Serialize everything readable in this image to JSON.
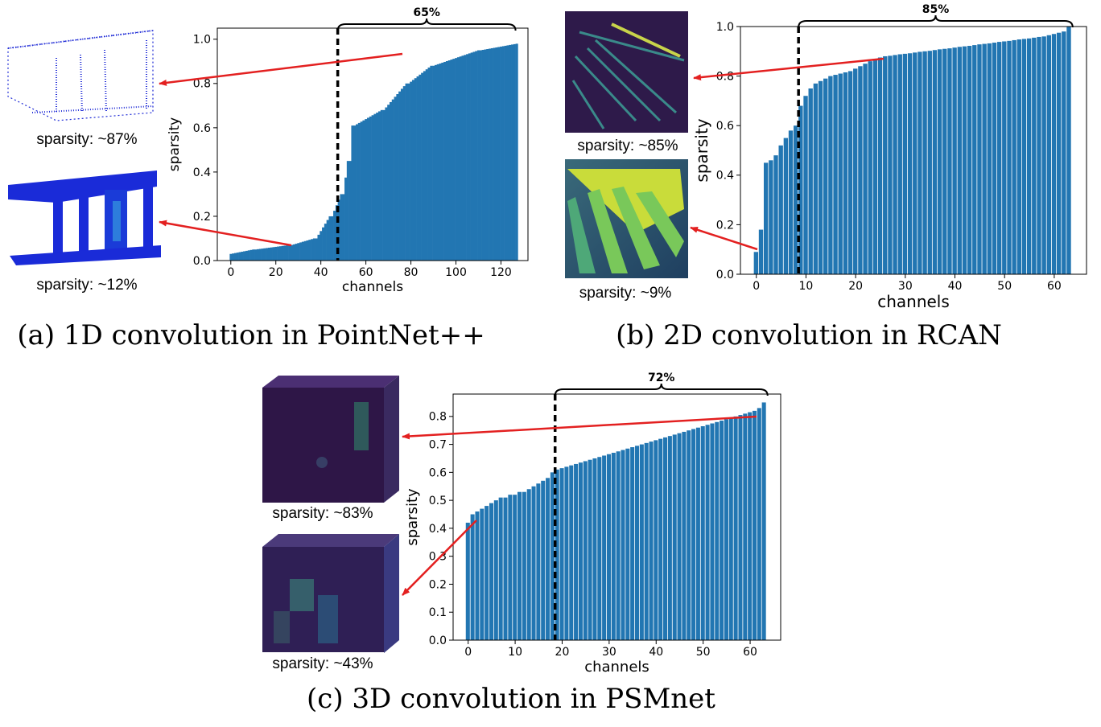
{
  "panels": [
    {
      "caption": "(a) 1D convolution in PointNet++",
      "thumb_labels": [
        "sparsity: ~87%",
        "sparsity: ~12%"
      ],
      "bracket_label": "65%"
    },
    {
      "caption": "(b) 2D convolution in RCAN",
      "thumb_labels": [
        "sparsity: ~85%",
        "sparsity: ~9%"
      ],
      "bracket_label": "85%"
    },
    {
      "caption": "(c) 3D convolution in PSMnet",
      "thumb_labels": [
        "sparsity: ~83%",
        "sparsity: ~43%"
      ],
      "bracket_label": "72%"
    }
  ],
  "colors": {
    "bar": "#2276b2",
    "arrow": "#e32020",
    "divider": "#000000"
  },
  "chart_data": [
    {
      "type": "bar",
      "xlabel": "channels",
      "ylabel": "sparsity",
      "xlim": [
        -6,
        132
      ],
      "ylim": [
        0,
        1.05
      ],
      "xticks": [
        0,
        20,
        40,
        60,
        80,
        100,
        120
      ],
      "yticks": [
        "0.0",
        "0.2",
        "0.4",
        "0.6",
        "0.8",
        "1.0"
      ],
      "divider_x": 47.5,
      "segments": [
        {
          "x0": 0,
          "x1": 10,
          "y0": 0.03,
          "y1": 0.05
        },
        {
          "x0": 10,
          "x1": 25,
          "y0": 0.05,
          "y1": 0.07
        },
        {
          "x0": 25,
          "x1": 35,
          "y0": 0.07,
          "y1": 0.1
        },
        {
          "x0": 35,
          "x1": 41,
          "y0": 0.1,
          "y1": 0.2
        },
        {
          "x0": 41,
          "x1": 45,
          "y0": 0.2,
          "y1": 0.3
        },
        {
          "x0": 45,
          "x1": 47,
          "y0": 0.3,
          "y1": 0.45
        },
        {
          "x0": 47,
          "x1": 48,
          "y0": 0.45,
          "y1": 0.61
        },
        {
          "x0": 48,
          "x1": 60,
          "y0": 0.61,
          "y1": 0.68
        },
        {
          "x0": 60,
          "x1": 70,
          "y0": 0.68,
          "y1": 0.8
        },
        {
          "x0": 70,
          "x1": 80,
          "y0": 0.8,
          "y1": 0.88
        },
        {
          "x0": 80,
          "x1": 100,
          "y0": 0.88,
          "y1": 0.95
        },
        {
          "x0": 100,
          "x1": 127,
          "y0": 0.95,
          "y1": 1.0
        }
      ]
    },
    {
      "type": "bar",
      "xlabel": "channels",
      "ylabel": "sparsity",
      "xlim": [
        -3.2,
        66.5
      ],
      "ylim": [
        0,
        1.0
      ],
      "xticks": [
        0,
        10,
        20,
        30,
        40,
        50,
        60
      ],
      "yticks": [
        "0.0",
        "0.2",
        "0.4",
        "0.6",
        "0.8",
        "1.0"
      ],
      "divider_x": 8.5,
      "values": [
        0.09,
        0.18,
        0.45,
        0.46,
        0.48,
        0.52,
        0.55,
        0.58,
        0.6,
        0.68,
        0.72,
        0.75,
        0.77,
        0.78,
        0.79,
        0.8,
        0.805,
        0.81,
        0.815,
        0.82,
        0.83,
        0.84,
        0.85,
        0.86,
        0.87,
        0.875,
        0.88,
        0.882,
        0.885,
        0.888,
        0.89,
        0.892,
        0.895,
        0.898,
        0.9,
        0.902,
        0.905,
        0.908,
        0.91,
        0.912,
        0.915,
        0.918,
        0.92,
        0.922,
        0.925,
        0.928,
        0.93,
        0.932,
        0.935,
        0.938,
        0.94,
        0.942,
        0.945,
        0.948,
        0.95,
        0.952,
        0.955,
        0.958,
        0.96,
        0.965,
        0.97,
        0.975,
        0.98,
        1.0
      ]
    },
    {
      "type": "bar",
      "xlabel": "channels",
      "ylabel": "sparsity",
      "xlim": [
        -3.2,
        66.5
      ],
      "ylim": [
        0,
        0.88
      ],
      "xticks": [
        0,
        10,
        20,
        30,
        40,
        50,
        60
      ],
      "yticks": [
        "0.0",
        "0.1",
        "0.2",
        "0.3",
        "0.4",
        "0.5",
        "0.6",
        "0.7",
        "0.8"
      ],
      "divider_x": 18.5,
      "values": [
        0.42,
        0.45,
        0.46,
        0.47,
        0.48,
        0.49,
        0.5,
        0.51,
        0.51,
        0.52,
        0.52,
        0.53,
        0.53,
        0.54,
        0.55,
        0.56,
        0.57,
        0.58,
        0.6,
        0.61,
        0.615,
        0.62,
        0.625,
        0.63,
        0.635,
        0.64,
        0.645,
        0.65,
        0.655,
        0.66,
        0.665,
        0.67,
        0.675,
        0.68,
        0.685,
        0.69,
        0.695,
        0.7,
        0.705,
        0.71,
        0.715,
        0.72,
        0.725,
        0.73,
        0.735,
        0.74,
        0.745,
        0.75,
        0.755,
        0.76,
        0.765,
        0.77,
        0.775,
        0.78,
        0.785,
        0.79,
        0.795,
        0.8,
        0.805,
        0.81,
        0.815,
        0.82,
        0.83,
        0.85
      ]
    }
  ]
}
